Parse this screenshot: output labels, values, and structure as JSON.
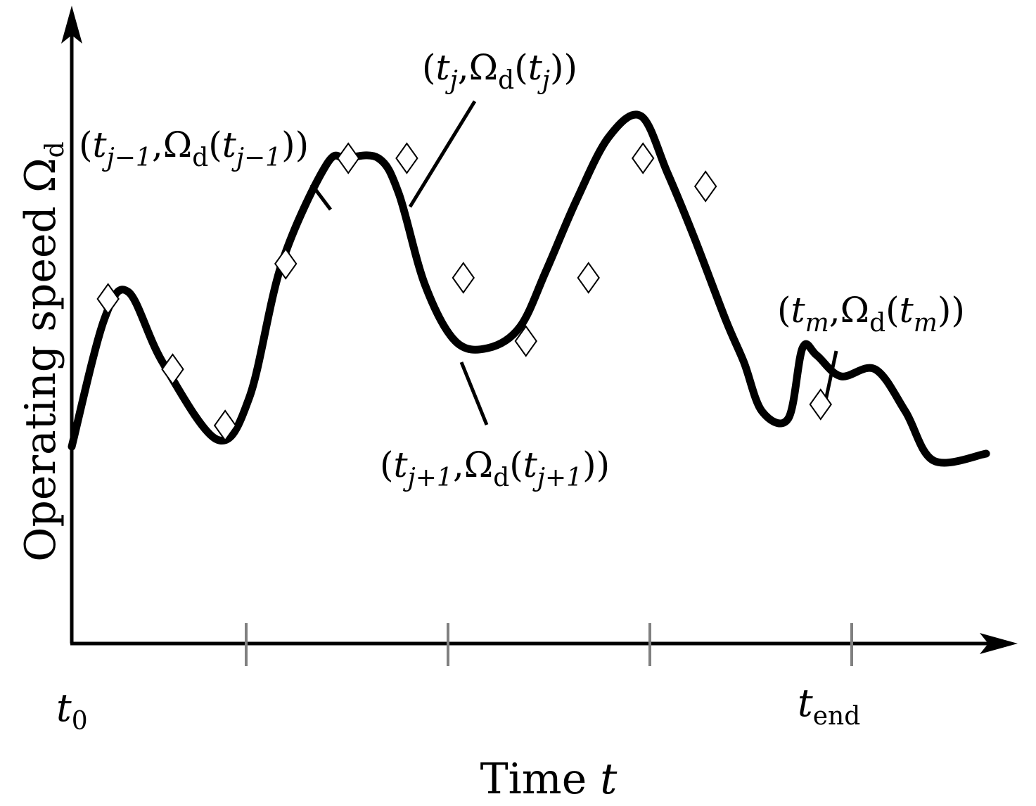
{
  "chart_data": {
    "type": "line",
    "title": "",
    "xlabel": {
      "text": "Time ",
      "var": "t"
    },
    "ylabel": {
      "text": "Operating speed Ω",
      "sub": "d"
    },
    "grid": false,
    "legend": "none",
    "tick_labels": {
      "start": {
        "base": "t",
        "sub": "0"
      },
      "end": {
        "base": "t",
        "sub": "end"
      }
    },
    "x_ticks": [
      1,
      2,
      3,
      4
    ],
    "series": [
      {
        "x": [
          0,
          0.16,
          0.28,
          0.45,
          0.72,
          0.88,
          1.04,
          1.26,
          1.36,
          1.52,
          1.62,
          1.75,
          1.9,
          2.06,
          2.22,
          2.35,
          2.5,
          2.66,
          2.82,
          2.95,
          3.08,
          3.24,
          3.33,
          3.42,
          3.55,
          3.62,
          3.69,
          3.81,
          3.98,
          4.13,
          4.27,
          4.53
        ],
        "y": [
          0.28,
          0.46,
          0.5,
          0.4,
          0.29,
          0.35,
          0.54,
          0.68,
          0.69,
          0.69,
          0.64,
          0.51,
          0.43,
          0.42,
          0.45,
          0.53,
          0.63,
          0.72,
          0.75,
          0.67,
          0.58,
          0.46,
          0.4,
          0.33,
          0.32,
          0.42,
          0.41,
          0.38,
          0.39,
          0.33,
          0.26,
          0.27
        ]
      }
    ],
    "samples": {
      "x": [
        0.18,
        0.5,
        0.76,
        1.06,
        1.37,
        1.66,
        1.94,
        2.25,
        2.56,
        2.83,
        3.14,
        3.71
      ],
      "y": [
        0.49,
        0.39,
        0.31,
        0.54,
        0.69,
        0.69,
        0.52,
        0.43,
        0.52,
        0.69,
        0.65,
        0.34
      ]
    },
    "annotations": [
      {
        "id": "prev",
        "parts": [
          "(",
          "t",
          "j−1",
          ",Ω",
          "d",
          "(",
          "t",
          "j−1",
          "))"
        ]
      },
      {
        "id": "cur",
        "parts": [
          "(",
          "t",
          "j",
          ",Ω",
          "d",
          "(",
          "t",
          "j",
          "))"
        ]
      },
      {
        "id": "next",
        "parts": [
          "(",
          "t",
          "j+1",
          ",Ω",
          "d",
          "(",
          "t",
          "j+1",
          "))"
        ]
      },
      {
        "id": "last",
        "parts": [
          "(",
          "t",
          "m",
          ",Ω",
          "d",
          "(",
          "t",
          "m",
          "))"
        ]
      }
    ]
  }
}
